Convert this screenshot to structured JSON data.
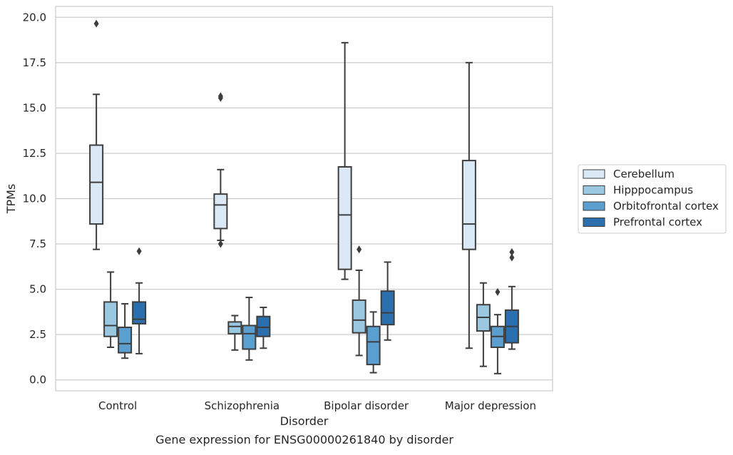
{
  "chart_data": {
    "type": "box",
    "xlabel": "Disorder",
    "ylabel": "TPMs",
    "caption": "Gene expression for ENSG00000261840 by disorder",
    "categories": [
      "Control",
      "Schizophrenia",
      "Bipolar disorder",
      "Major depression"
    ],
    "ylim": [
      -0.6,
      20.6
    ],
    "yticks": [
      "0.0",
      "2.5",
      "5.0",
      "7.5",
      "10.0",
      "12.5",
      "15.0",
      "17.5",
      "20.0"
    ],
    "grid": true,
    "legend_position": "right",
    "series": [
      {
        "name": "Cerebellum",
        "color": "#dbe9f6",
        "boxes": [
          {
            "whisker_low": 7.2,
            "q1": 8.6,
            "median": 10.9,
            "q3": 12.95,
            "whisker_high": 15.75,
            "outliers": [
              19.65
            ]
          },
          {
            "whisker_low": 7.7,
            "q1": 8.35,
            "median": 9.65,
            "q3": 10.25,
            "whisker_high": 11.6,
            "outliers": [
              15.55,
              15.65,
              7.5
            ]
          },
          {
            "whisker_low": 5.55,
            "q1": 6.1,
            "median": 9.1,
            "q3": 11.75,
            "whisker_high": 18.6,
            "outliers": []
          },
          {
            "whisker_low": 1.75,
            "q1": 7.2,
            "median": 8.6,
            "q3": 12.1,
            "whisker_high": 17.5,
            "outliers": []
          }
        ]
      },
      {
        "name": "Hipppocampus",
        "color": "#9ac8e0",
        "boxes": [
          {
            "whisker_low": 1.8,
            "q1": 2.4,
            "median": 3.0,
            "q3": 4.3,
            "whisker_high": 5.95,
            "outliers": []
          },
          {
            "whisker_low": 1.65,
            "q1": 2.55,
            "median": 2.95,
            "q3": 3.2,
            "whisker_high": 3.55,
            "outliers": []
          },
          {
            "whisker_low": 1.35,
            "q1": 2.6,
            "median": 3.3,
            "q3": 4.4,
            "whisker_high": 6.05,
            "outliers": [
              7.2
            ]
          },
          {
            "whisker_low": 0.75,
            "q1": 2.7,
            "median": 3.45,
            "q3": 4.15,
            "whisker_high": 5.35,
            "outliers": []
          }
        ]
      },
      {
        "name": "Orbitofrontal cortex",
        "color": "#5a9fcf",
        "boxes": [
          {
            "whisker_low": 1.2,
            "q1": 1.5,
            "median": 2.0,
            "q3": 2.9,
            "whisker_high": 4.2,
            "outliers": []
          },
          {
            "whisker_low": 1.1,
            "q1": 1.7,
            "median": 2.55,
            "q3": 3.0,
            "whisker_high": 4.55,
            "outliers": []
          },
          {
            "whisker_low": 0.4,
            "q1": 0.85,
            "median": 2.1,
            "q3": 2.95,
            "whisker_high": 3.75,
            "outliers": []
          },
          {
            "whisker_low": 0.35,
            "q1": 1.8,
            "median": 2.4,
            "q3": 2.95,
            "whisker_high": 3.6,
            "outliers": [
              4.85
            ]
          }
        ]
      },
      {
        "name": "Prefrontal cortex",
        "color": "#2b6fae",
        "boxes": [
          {
            "whisker_low": 1.45,
            "q1": 3.1,
            "median": 3.35,
            "q3": 4.3,
            "whisker_high": 5.35,
            "outliers": [
              7.1
            ]
          },
          {
            "whisker_low": 1.75,
            "q1": 2.4,
            "median": 2.9,
            "q3": 3.5,
            "whisker_high": 4.0,
            "outliers": []
          },
          {
            "whisker_low": 2.2,
            "q1": 3.05,
            "median": 3.7,
            "q3": 4.9,
            "whisker_high": 6.5,
            "outliers": []
          },
          {
            "whisker_low": 1.7,
            "q1": 2.05,
            "median": 2.95,
            "q3": 3.85,
            "whisker_high": 5.15,
            "outliers": [
              6.75,
              7.05
            ]
          }
        ]
      }
    ]
  }
}
